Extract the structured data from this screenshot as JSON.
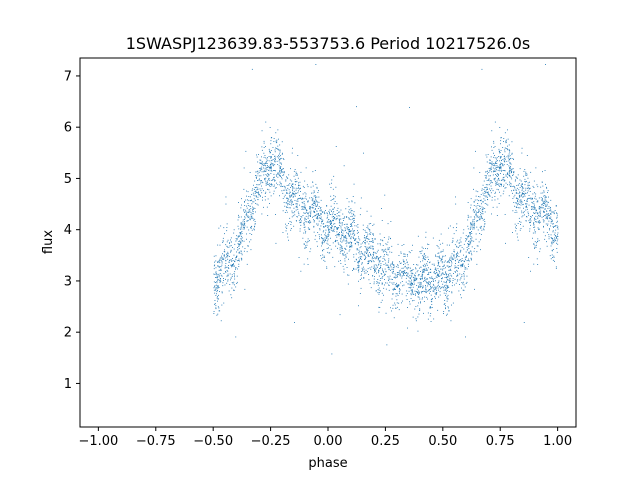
{
  "chart_data": {
    "type": "scatter",
    "title": "1SWASPJ123639.83-553753.6 Period 10217526.0s",
    "xlabel": "phase",
    "ylabel": "flux",
    "xlim": [
      -1.08,
      1.08
    ],
    "ylim": [
      0.15,
      7.35
    ],
    "x_ticks": [
      -1.0,
      -0.75,
      -0.5,
      -0.25,
      0.0,
      0.25,
      0.5,
      0.75,
      1.0
    ],
    "x_tick_labels": [
      "−1.00",
      "−0.75",
      "−0.50",
      "−0.25",
      "0.00",
      "0.25",
      "0.50",
      "0.75",
      "1.00"
    ],
    "y_ticks": [
      1,
      2,
      3,
      4,
      5,
      6,
      7
    ],
    "y_tick_labels": [
      "1",
      "2",
      "3",
      "4",
      "5",
      "6",
      "7"
    ],
    "marker_color": "#1f77b4",
    "grid": false,
    "phase_profile": {
      "phase": [
        -0.5,
        -0.45,
        -0.4,
        -0.35,
        -0.3,
        -0.25,
        -0.2,
        -0.15,
        -0.1,
        -0.05,
        0.0,
        0.05,
        0.1,
        0.15,
        0.2,
        0.25,
        0.3,
        0.35,
        0.4,
        0.45,
        0.5
      ],
      "flux": [
        3.1,
        3.2,
        3.5,
        4.3,
        4.9,
        5.4,
        4.9,
        4.6,
        4.4,
        4.2,
        4.1,
        4.0,
        3.8,
        3.6,
        3.4,
        3.3,
        3.1,
        3.0,
        3.0,
        3.0,
        3.1
      ]
    }
  }
}
